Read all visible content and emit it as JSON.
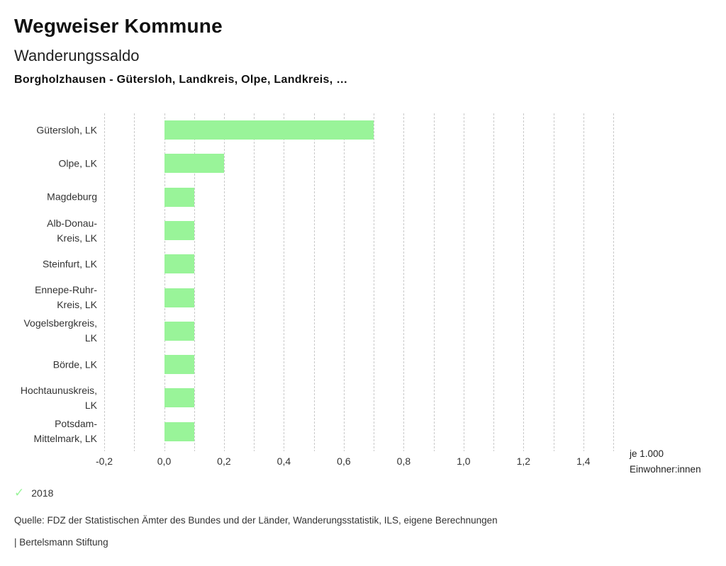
{
  "header": {
    "title": "Wegweiser Kommune",
    "subtitle": "Wanderungssaldo",
    "entities_line": "Borgholzhausen - Gütersloh, Landkreis, Olpe, Landkreis, …"
  },
  "legend": {
    "check_glyph": "✓",
    "year": "2018"
  },
  "footer": {
    "source": "Quelle: FDZ der Statistischen Ämter des Bundes und der Länder, Wanderungsstatistik, ILS, eigene Berechnungen",
    "branding": "| Bertelsmann Stiftung"
  },
  "chart_data": {
    "type": "bar",
    "orientation": "horizontal",
    "title": "Wanderungssaldo",
    "subtitle": "Borgholzhausen - Gütersloh, Landkreis, Olpe, Landkreis, …",
    "categories": [
      "Gütersloh, LK",
      "Olpe, LK",
      "Magdeburg",
      "Alb-Donau-\nKreis, LK",
      "Steinfurt, LK",
      "Ennepe-Ruhr-\nKreis, LK",
      "Vogelsbergkreis,\nLK",
      "Börde, LK",
      "Hochtaunuskreis,\nLK",
      "Potsdam-\nMittelmark, LK"
    ],
    "series": [
      {
        "name": "2018",
        "values": [
          0.7,
          0.2,
          0.1,
          0.1,
          0.1,
          0.1,
          0.1,
          0.1,
          0.1,
          0.1
        ]
      }
    ],
    "xlabel_line1": "je 1.000",
    "xlabel_line2": "Einwohner:innen",
    "xlim": [
      -0.2,
      1.5
    ],
    "grid": true,
    "grid_step": 0.1,
    "x_ticks": [
      {
        "value": -0.2,
        "label": "-0,2"
      },
      {
        "value": 0.0,
        "label": "0,0"
      },
      {
        "value": 0.2,
        "label": "0,2"
      },
      {
        "value": 0.4,
        "label": "0,4"
      },
      {
        "value": 0.6,
        "label": "0,6"
      },
      {
        "value": 0.8,
        "label": "0,8"
      },
      {
        "value": 1.0,
        "label": "1,0"
      },
      {
        "value": 1.2,
        "label": "1,2"
      },
      {
        "value": 1.4,
        "label": "1,4"
      }
    ],
    "bar_color": "#99f499",
    "gridline_color": "#c9c9c9",
    "legend_position": "bottom-left"
  }
}
